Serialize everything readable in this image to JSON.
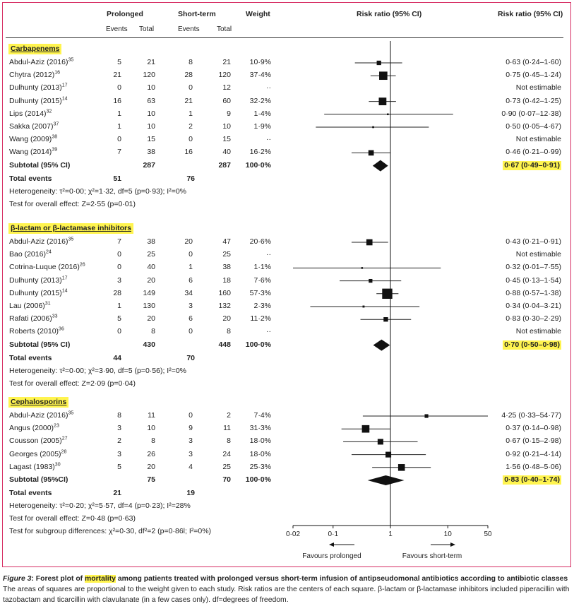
{
  "headers": {
    "prolonged": "Prolonged",
    "short_term": "Short-term",
    "events": "Events",
    "total": "Total",
    "weight": "Weight",
    "rr_plot": "Risk ratio (95% CI)",
    "rr_text": "Risk ratio (95% CI)"
  },
  "sections": [
    {
      "title": "Carbapenems",
      "studies": [
        {
          "name": "Abdul-Aziz (2016)",
          "ref": "35",
          "pe": "5",
          "pt": "21",
          "se": "8",
          "st": "21",
          "w": "10·9%",
          "rr": 0.63,
          "lo": 0.24,
          "hi": 1.6,
          "ci": "0·63 (0·24–1·60)"
        },
        {
          "name": "Chytra (2012)",
          "ref": "16",
          "pe": "21",
          "pt": "120",
          "se": "28",
          "st": "120",
          "w": "37·4%",
          "rr": 0.75,
          "lo": 0.45,
          "hi": 1.24,
          "ci": "0·75 (0·45–1·24)"
        },
        {
          "name": "Dulhunty (2013)",
          "ref": "17",
          "pe": "0",
          "pt": "10",
          "se": "0",
          "st": "12",
          "w": "··",
          "rr": null,
          "lo": null,
          "hi": null,
          "ci": "Not estimable"
        },
        {
          "name": "Dulhunty (2015)",
          "ref": "14",
          "pe": "16",
          "pt": "63",
          "se": "21",
          "st": "60",
          "w": "32·2%",
          "rr": 0.73,
          "lo": 0.42,
          "hi": 1.25,
          "ci": "0·73 (0·42–1·25)"
        },
        {
          "name": "Lips (2014)",
          "ref": "32",
          "pe": "1",
          "pt": "10",
          "se": "1",
          "st": "9",
          "w": "1·4%",
          "rr": 0.9,
          "lo": 0.07,
          "hi": 12.38,
          "ci": "0·90 (0·07–12·38)"
        },
        {
          "name": "Sakka (2007)",
          "ref": "37",
          "pe": "1",
          "pt": "10",
          "se": "2",
          "st": "10",
          "w": "1·9%",
          "rr": 0.5,
          "lo": 0.05,
          "hi": 4.67,
          "ci": "0·50 (0·05–4·67)"
        },
        {
          "name": "Wang (2009)",
          "ref": "38",
          "pe": "0",
          "pt": "15",
          "se": "0",
          "st": "15",
          "w": "··",
          "rr": null,
          "lo": null,
          "hi": null,
          "ci": "Not estimable"
        },
        {
          "name": "Wang (2014)",
          "ref": "39",
          "pe": "7",
          "pt": "38",
          "se": "16",
          "st": "40",
          "w": "16·2%",
          "rr": 0.46,
          "lo": 0.21,
          "hi": 0.99,
          "ci": "0·46 (0·21–0·99)"
        }
      ],
      "subtotal": {
        "label": "Subtotal (95% CI)",
        "pt": "287",
        "st": "287",
        "w": "100·0%",
        "rr": 0.67,
        "lo": 0.49,
        "hi": 0.91,
        "ci": "0·67 (0·49–0·91)"
      },
      "total_events": {
        "label": "Total events",
        "pe": "51",
        "se": "76"
      },
      "notes": [
        "Heterogeneity: τ²=0·00; χ²=1·32, df=5 (p=0·93); I²=0%",
        "Test for overall effect: Z=2·55 (p=0·01)"
      ]
    },
    {
      "title": "β-lactam or β-lactamase inhibitors",
      "studies": [
        {
          "name": "Abdul-Aziz (2016)",
          "ref": "35",
          "pe": "7",
          "pt": "38",
          "se": "20",
          "st": "47",
          "w": "20·6%",
          "rr": 0.43,
          "lo": 0.21,
          "hi": 0.91,
          "ci": "0·43 (0·21–0·91)"
        },
        {
          "name": "Bao (2016)",
          "ref": "24",
          "pe": "0",
          "pt": "25",
          "se": "0",
          "st": "25",
          "w": "··",
          "rr": null,
          "lo": null,
          "hi": null,
          "ci": "Not estimable"
        },
        {
          "name": "Cotrina-Luque (2016)",
          "ref": "26",
          "pe": "0",
          "pt": "40",
          "se": "1",
          "st": "38",
          "w": "1·1%",
          "rr": 0.32,
          "lo": 0.01,
          "hi": 7.55,
          "ci": "0·32 (0·01–7·55)"
        },
        {
          "name": "Dulhunty (2013)",
          "ref": "17",
          "pe": "3",
          "pt": "20",
          "se": "6",
          "st": "18",
          "w": "7·6%",
          "rr": 0.45,
          "lo": 0.13,
          "hi": 1.54,
          "ci": "0·45 (0·13–1·54)"
        },
        {
          "name": "Dulhunty (2015)",
          "ref": "14",
          "pe": "28",
          "pt": "149",
          "se": "34",
          "st": "160",
          "w": "57·3%",
          "rr": 0.88,
          "lo": 0.57,
          "hi": 1.38,
          "ci": "0·88 (0·57–1·38)"
        },
        {
          "name": "Lau (2006)",
          "ref": "31",
          "pe": "1",
          "pt": "130",
          "se": "3",
          "st": "132",
          "w": "2·3%",
          "rr": 0.34,
          "lo": 0.04,
          "hi": 3.21,
          "ci": "0·34 (0·04–3·21)"
        },
        {
          "name": "Rafati (2006)",
          "ref": "33",
          "pe": "5",
          "pt": "20",
          "se": "6",
          "st": "20",
          "w": "11·2%",
          "rr": 0.83,
          "lo": 0.3,
          "hi": 2.29,
          "ci": "0·83 (0·30–2·29)"
        },
        {
          "name": "Roberts (2010)",
          "ref": "36",
          "pe": "0",
          "pt": "8",
          "se": "0",
          "st": "8",
          "w": "··",
          "rr": null,
          "lo": null,
          "hi": null,
          "ci": "Not estimable"
        }
      ],
      "subtotal": {
        "label": "Subtotal (95% CI)",
        "pt": "430",
        "st": "448",
        "w": "100·0%",
        "rr": 0.7,
        "lo": 0.5,
        "hi": 0.98,
        "ci": "0·70 (0·50–0·98)"
      },
      "total_events": {
        "label": "Total events",
        "pe": "44",
        "se": "70"
      },
      "notes": [
        "Heterogeneity: τ²=0·00; χ²=3·90, df=5 (p=0·56); I²=0%",
        "Test for overall effect: Z=2·09 (p=0·04)"
      ]
    },
    {
      "title": "Cephalosporins",
      "studies": [
        {
          "name": "Abdul-Aziz (2016)",
          "ref": "35",
          "pe": "8",
          "pt": "11",
          "se": "0",
          "st": "2",
          "w": "7·4%",
          "rr": 4.25,
          "lo": 0.33,
          "hi": 54.77,
          "ci": "4·25 (0·33–54·77)"
        },
        {
          "name": "Angus (2000)",
          "ref": "23",
          "pe": "3",
          "pt": "10",
          "se": "9",
          "st": "11",
          "w": "31·3%",
          "rr": 0.37,
          "lo": 0.14,
          "hi": 0.98,
          "ci": "0·37 (0·14–0·98)"
        },
        {
          "name": "Cousson (2005)",
          "ref": "27",
          "pe": "2",
          "pt": "8",
          "se": "3",
          "st": "8",
          "w": "18·0%",
          "rr": 0.67,
          "lo": 0.15,
          "hi": 2.98,
          "ci": "0·67 (0·15–2·98)"
        },
        {
          "name": "Georges (2005)",
          "ref": "28",
          "pe": "3",
          "pt": "26",
          "se": "3",
          "st": "24",
          "w": "18·0%",
          "rr": 0.92,
          "lo": 0.21,
          "hi": 4.14,
          "ci": "0·92 (0·21–4·14)"
        },
        {
          "name": "Lagast (1983)",
          "ref": "30",
          "pe": "5",
          "pt": "20",
          "se": "4",
          "st": "25",
          "w": "25·3%",
          "rr": 1.56,
          "lo": 0.48,
          "hi": 5.06,
          "ci": "1·56 (0·48–5·06)"
        }
      ],
      "subtotal": {
        "label": "Subtotal (95%CI)",
        "pt": "75",
        "st": "70",
        "w": "100·0%",
        "rr": 0.83,
        "lo": 0.4,
        "hi": 1.74,
        "ci": "0·83 (0·40–1·74)"
      },
      "total_events": {
        "label": "Total events",
        "pe": "21",
        "se": "19"
      },
      "notes": [
        "Heterogeneity: τ²=0·20; χ²=5·57, df=4 (p=0·23); I²=28%",
        "Test for overall effect: Z=0·48 (p=0·63)",
        "Test for subgroup differences: χ²=0·30, df²=2 (p=0·86l; I²=0%)"
      ]
    }
  ],
  "chart_data": {
    "type": "scatter",
    "subtype": "forest-plot",
    "x_scale": "log",
    "x_ticks": [
      "0·02",
      "0·1",
      "1",
      "10",
      "50"
    ],
    "x_tick_values": [
      0.02,
      0.1,
      1,
      10,
      50
    ],
    "xlim": [
      0.02,
      50
    ],
    "reference_line": 1,
    "favours_left": "Favours prolonged",
    "favours_right": "Favours short-term"
  },
  "caption": {
    "label": "Figure 3",
    "title_pre": ": Forest plot of ",
    "title_hl": "mortality",
    "title_post": " among patients treated with prolonged versus short-term infusion of antipseudomonal antibiotics according to antibiotic classes",
    "body": "The areas of squares are proportional to the weight given to each study. Risk ratios are the centers of each square. β-lactam or β-lactamase inhibitors included piperacillin with tazobactam and ticarcillin with clavulanate (in a few cases only). df=degrees of freedom."
  }
}
